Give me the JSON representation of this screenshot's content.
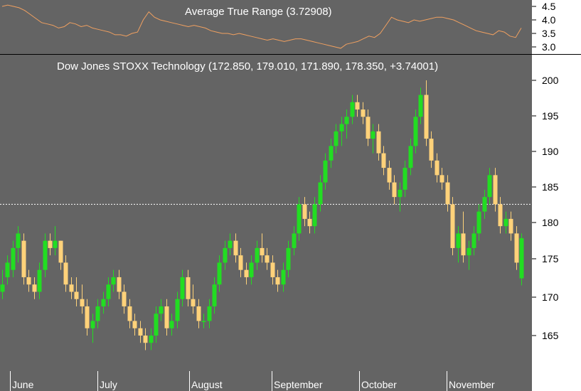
{
  "colors": {
    "background": "#646464",
    "axis_panel": "#ffffff",
    "up_candle": "#22dd22",
    "down_candle": "#ffd27a",
    "atr_line": "#f0a060",
    "ref_line": "#ffffff"
  },
  "atr_panel": {
    "title": "Average True Range (3.72908)",
    "y_ticks": [
      "4.5",
      "4.0",
      "3.5",
      "3.0"
    ]
  },
  "price_panel": {
    "title": "Dow Jones STOXX Technology (172.850, 179.010, 171.890, 178.350, +3.74001)",
    "y_ticks": [
      "200",
      "195",
      "190",
      "185",
      "180",
      "175",
      "170",
      "165"
    ]
  },
  "x_axis": {
    "months": [
      "June",
      "July",
      "August",
      "September",
      "October",
      "November"
    ]
  },
  "chart_data": {
    "type": "candlestick",
    "series": [
      {
        "name": "Dow Jones STOXX Technology",
        "last_open": 172.85,
        "last_high": 179.01,
        "last_low": 171.89,
        "last_close": 178.35,
        "last_change": 3.74001
      },
      {
        "name": "Average True Range",
        "last_value": 3.72908
      }
    ],
    "y_range": [
      160,
      202
    ],
    "atr_range": [
      2.8,
      4.8
    ],
    "reference_level": 183,
    "atr_values": [
      4.5,
      4.55,
      4.5,
      4.45,
      4.35,
      4.2,
      4.05,
      3.9,
      3.85,
      3.8,
      3.7,
      3.75,
      3.9,
      3.85,
      3.75,
      3.8,
      3.7,
      3.65,
      3.6,
      3.55,
      3.45,
      3.45,
      3.4,
      3.5,
      3.55,
      4.0,
      4.3,
      4.1,
      4.0,
      3.95,
      3.9,
      3.85,
      3.8,
      3.75,
      3.8,
      3.75,
      3.7,
      3.6,
      3.55,
      3.5,
      3.5,
      3.45,
      3.5,
      3.45,
      3.4,
      3.35,
      3.3,
      3.25,
      3.3,
      3.25,
      3.2,
      3.25,
      3.3,
      3.3,
      3.25,
      3.2,
      3.15,
      3.1,
      3.05,
      3.0,
      2.95,
      3.1,
      3.15,
      3.2,
      3.3,
      3.4,
      3.35,
      3.5,
      3.8,
      4.1,
      4.0,
      3.95,
      3.9,
      4.0,
      3.95,
      4.0,
      4.05,
      4.1,
      4.1,
      4.05,
      4.0,
      3.9,
      3.8,
      3.7,
      3.6,
      3.55,
      3.5,
      3.45,
      3.6,
      3.55,
      3.4,
      3.35,
      3.7
    ],
    "ohlc": [
      [
        171,
        174,
        170,
        172
      ],
      [
        173,
        176,
        172,
        175
      ],
      [
        174,
        178,
        173,
        177
      ],
      [
        177,
        180,
        175,
        179
      ],
      [
        178,
        179,
        172,
        173
      ],
      [
        173,
        174,
        171,
        172
      ],
      [
        172,
        173,
        170,
        171
      ],
      [
        171,
        175,
        170,
        174
      ],
      [
        174,
        179,
        173,
        178
      ],
      [
        178,
        179,
        176,
        177
      ],
      [
        177,
        180,
        176,
        178
      ],
      [
        178,
        178,
        174,
        175
      ],
      [
        175,
        176,
        171,
        172
      ],
      [
        172,
        173,
        170,
        171
      ],
      [
        171,
        173,
        169,
        170
      ],
      [
        170,
        172,
        168,
        169
      ],
      [
        169,
        170,
        165,
        166
      ],
      [
        166,
        168,
        164,
        167
      ],
      [
        167,
        170,
        166,
        169
      ],
      [
        169,
        171,
        168,
        170
      ],
      [
        170,
        173,
        169,
        172
      ],
      [
        172,
        174,
        171,
        173
      ],
      [
        173,
        174,
        170,
        171
      ],
      [
        171,
        172,
        168,
        169
      ],
      [
        169,
        170,
        166,
        167
      ],
      [
        167,
        168,
        165,
        166
      ],
      [
        166,
        167,
        164,
        165
      ],
      [
        165,
        166,
        163,
        164
      ],
      [
        164,
        166,
        163,
        165
      ],
      [
        165,
        169,
        164,
        168
      ],
      [
        168,
        170,
        167,
        169
      ],
      [
        169,
        170,
        165,
        166
      ],
      [
        166,
        168,
        165,
        167
      ],
      [
        167,
        171,
        166,
        170
      ],
      [
        170,
        174,
        169,
        173
      ],
      [
        173,
        174,
        169,
        170
      ],
      [
        170,
        172,
        168,
        169
      ],
      [
        169,
        170,
        166,
        167
      ],
      [
        167,
        168,
        166,
        167
      ],
      [
        167,
        170,
        166,
        169
      ],
      [
        169,
        173,
        168,
        172
      ],
      [
        172,
        176,
        171,
        175
      ],
      [
        175,
        178,
        174,
        177
      ],
      [
        177,
        179,
        176,
        178
      ],
      [
        178,
        179,
        175,
        176
      ],
      [
        176,
        177,
        173,
        174
      ],
      [
        174,
        175,
        172,
        173
      ],
      [
        173,
        176,
        172,
        175
      ],
      [
        175,
        178,
        174,
        177
      ],
      [
        177,
        179,
        175,
        176
      ],
      [
        176,
        177,
        174,
        175
      ],
      [
        175,
        176,
        172,
        173
      ],
      [
        173,
        174,
        171,
        172
      ],
      [
        172,
        175,
        171,
        174
      ],
      [
        174,
        178,
        173,
        177
      ],
      [
        177,
        180,
        176,
        179
      ],
      [
        179,
        184,
        178,
        183
      ],
      [
        183,
        184,
        180,
        181
      ],
      [
        181,
        182,
        179,
        180
      ],
      [
        180,
        184,
        179,
        183
      ],
      [
        183,
        187,
        182,
        186
      ],
      [
        186,
        190,
        185,
        189
      ],
      [
        189,
        192,
        188,
        191
      ],
      [
        191,
        194,
        190,
        193
      ],
      [
        193,
        195,
        191,
        194
      ],
      [
        194,
        196,
        192,
        195
      ],
      [
        195,
        198,
        194,
        197
      ],
      [
        197,
        198,
        195,
        196
      ],
      [
        196,
        197,
        194,
        195
      ],
      [
        195,
        196,
        191,
        192
      ],
      [
        192,
        194,
        190,
        193
      ],
      [
        193,
        194,
        189,
        190
      ],
      [
        190,
        191,
        187,
        188
      ],
      [
        188,
        189,
        185,
        186
      ],
      [
        186,
        187,
        183,
        184
      ],
      [
        184,
        186,
        182,
        185
      ],
      [
        185,
        189,
        184,
        188
      ],
      [
        188,
        192,
        187,
        191
      ],
      [
        191,
        196,
        190,
        195
      ],
      [
        195,
        199,
        194,
        198
      ],
      [
        198,
        200,
        191,
        192
      ],
      [
        192,
        193,
        188,
        189
      ],
      [
        189,
        190,
        186,
        187
      ],
      [
        187,
        188,
        185,
        186
      ],
      [
        186,
        187,
        182,
        183
      ],
      [
        183,
        184,
        176,
        177
      ],
      [
        177,
        180,
        175,
        179
      ],
      [
        179,
        182,
        175,
        176
      ],
      [
        176,
        178,
        174,
        177
      ],
      [
        177,
        180,
        176,
        179
      ],
      [
        179,
        183,
        178,
        182
      ],
      [
        182,
        185,
        181,
        184
      ],
      [
        184,
        188,
        183,
        187
      ],
      [
        187,
        188,
        182,
        183
      ],
      [
        183,
        184,
        179,
        180
      ],
      [
        180,
        182,
        179,
        181
      ],
      [
        181,
        182,
        178,
        179
      ],
      [
        179,
        180,
        174,
        175
      ],
      [
        172.85,
        179.01,
        171.89,
        178.35
      ]
    ]
  }
}
